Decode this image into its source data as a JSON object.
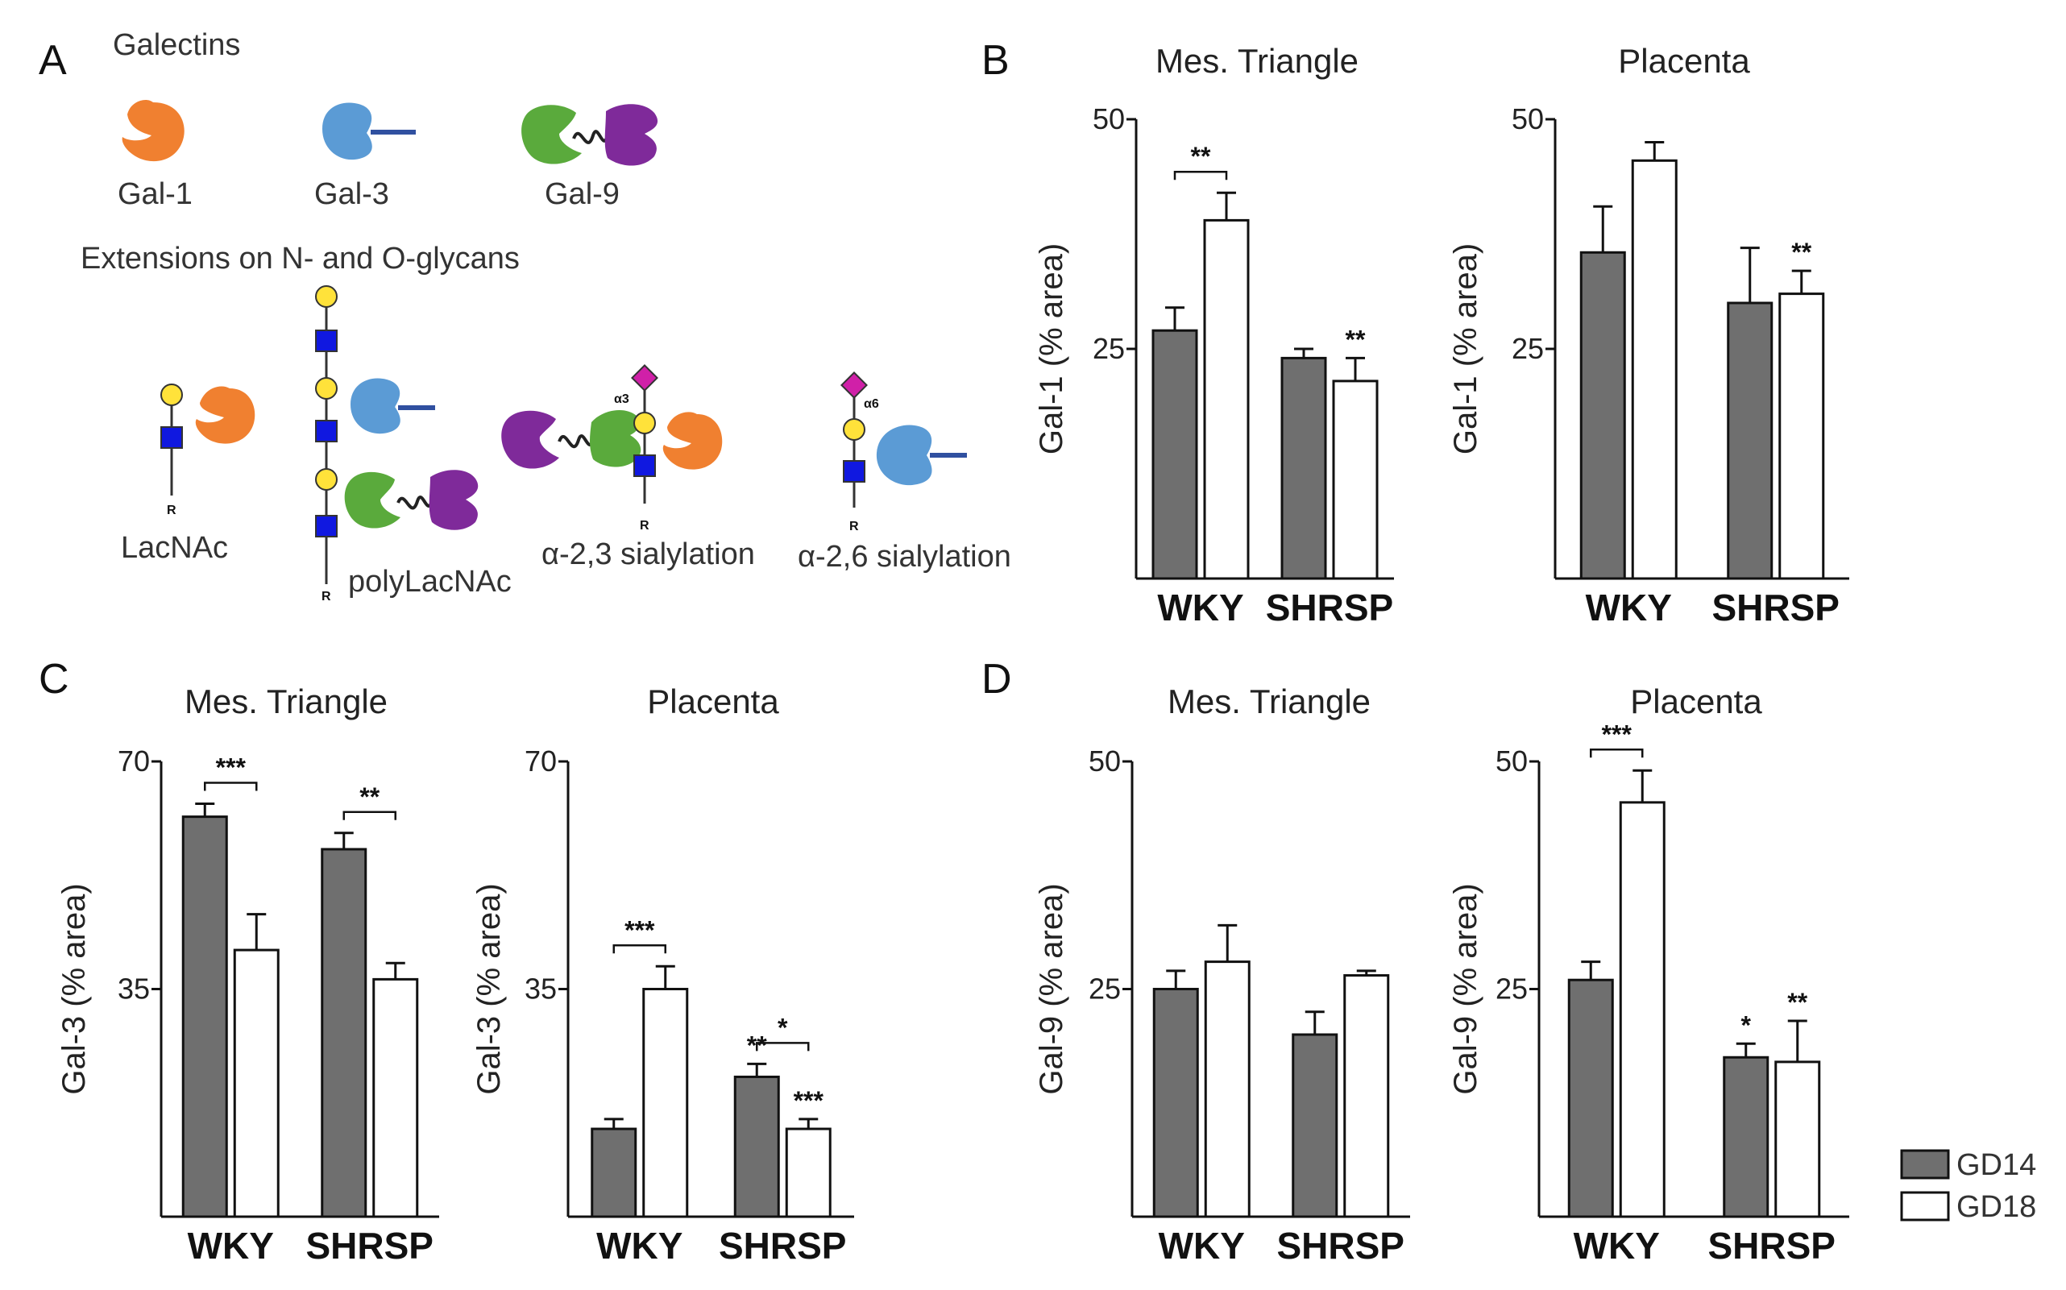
{
  "panels": {
    "a": "A",
    "b": "B",
    "c": "C",
    "d": "D"
  },
  "schematic": {
    "title": "Galectins",
    "gal1": "Gal-1",
    "gal3": "Gal-3",
    "gal9": "Gal-9",
    "extensions": "Extensions on N- and O-glycans",
    "lacnac": "LacNAc",
    "polylacnac": "polyLacNAc",
    "a23": "α-2,3 sialylation",
    "a26": "α-2,6 sialylation",
    "r": "R",
    "alpha3": "α3",
    "alpha6": "α6",
    "colors": {
      "gal1": "#f08030",
      "gal3": "#5b9bd5",
      "gal9a": "#5aaa3c",
      "gal9b": "#7f2a9a",
      "yellow": "#ffe23a",
      "blue": "#1018e0",
      "magenta": "#d020a8"
    }
  },
  "legend": {
    "gd14": "GD14",
    "gd18": "GD18",
    "gd14_color": "#6f6f6f",
    "gd18_color": "#ffffff"
  },
  "chart_data": [
    {
      "id": "B1",
      "type": "bar",
      "title": "Mes. Triangle",
      "ylabel": "Gal-1 (% area)",
      "ylim": [
        0,
        50
      ],
      "yticks": [
        25,
        50
      ],
      "yticklabels": [
        "25",
        "50"
      ],
      "categories": [
        "WKY",
        "SHRSP"
      ],
      "series": [
        {
          "name": "GD14",
          "values": [
            27,
            24
          ],
          "errors": [
            2.5,
            1
          ]
        },
        {
          "name": "GD18",
          "values": [
            39,
            21.5
          ],
          "errors": [
            3,
            2.5
          ]
        }
      ],
      "brackets": [
        {
          "group": 0,
          "label": "**"
        }
      ],
      "stars": [
        {
          "group": 1,
          "series": 1,
          "label": "**"
        }
      ]
    },
    {
      "id": "B2",
      "type": "bar",
      "title": "Placenta",
      "ylabel": "Gal-1 (% area)",
      "ylim": [
        0,
        50
      ],
      "yticks": [
        25,
        50
      ],
      "yticklabels": [
        "25",
        "50"
      ],
      "categories": [
        "WKY",
        "SHRSP"
      ],
      "series": [
        {
          "name": "GD14",
          "values": [
            35.5,
            30
          ],
          "errors": [
            5,
            6
          ]
        },
        {
          "name": "GD18",
          "values": [
            45.5,
            31
          ],
          "errors": [
            2,
            2.5
          ]
        }
      ],
      "brackets": [],
      "stars": [
        {
          "group": 1,
          "series": 1,
          "label": "**"
        }
      ]
    },
    {
      "id": "C1",
      "type": "bar",
      "title": "Mes. Triangle",
      "ylabel": "Gal-3 (% area)",
      "ylim": [
        0,
        70
      ],
      "yticks": [
        35,
        70
      ],
      "yticklabels": [
        "35",
        "70"
      ],
      "categories": [
        "WKY",
        "SHRSP"
      ],
      "series": [
        {
          "name": "GD14",
          "values": [
            61.5,
            56.5
          ],
          "errors": [
            2,
            2.5
          ]
        },
        {
          "name": "GD18",
          "values": [
            41,
            36.5
          ],
          "errors": [
            5.5,
            2.5
          ]
        }
      ],
      "brackets": [
        {
          "group": 0,
          "label": "***"
        },
        {
          "group": 1,
          "label": "**"
        }
      ],
      "stars": []
    },
    {
      "id": "C2",
      "type": "bar",
      "title": "Placenta",
      "ylabel": "Gal-3 (% area)",
      "ylim": [
        0,
        70
      ],
      "yticks": [
        35,
        70
      ],
      "yticklabels": [
        "35",
        "70"
      ],
      "categories": [
        "WKY",
        "SHRSP"
      ],
      "series": [
        {
          "name": "GD14",
          "values": [
            13.5,
            21.5
          ],
          "errors": [
            1.5,
            2
          ]
        },
        {
          "name": "GD18",
          "values": [
            35,
            13.5
          ],
          "errors": [
            3.5,
            1.5
          ]
        }
      ],
      "brackets": [
        {
          "group": 0,
          "label": "***"
        },
        {
          "group": 1,
          "label": "*"
        }
      ],
      "stars": [
        {
          "group": 1,
          "series": 0,
          "label": "**"
        },
        {
          "group": 1,
          "series": 1,
          "label": "***"
        }
      ]
    },
    {
      "id": "D1",
      "type": "bar",
      "title": "Mes. Triangle",
      "ylabel": "Gal-9 (% area)",
      "ylim": [
        0,
        50
      ],
      "yticks": [
        25,
        50
      ],
      "yticklabels": [
        "25",
        "50"
      ],
      "categories": [
        "WKY",
        "SHRSP"
      ],
      "series": [
        {
          "name": "GD14",
          "values": [
            25,
            20
          ],
          "errors": [
            2,
            2.5
          ]
        },
        {
          "name": "GD18",
          "values": [
            28,
            26.5
          ],
          "errors": [
            4,
            0.5
          ]
        }
      ],
      "brackets": [],
      "stars": []
    },
    {
      "id": "D2",
      "type": "bar",
      "title": "Placenta",
      "ylabel": "Gal-9 (% area)",
      "ylim": [
        0,
        50
      ],
      "yticks": [
        25,
        50
      ],
      "yticklabels": [
        "25",
        "50"
      ],
      "categories": [
        "WKY",
        "SHRSP"
      ],
      "series": [
        {
          "name": "GD14",
          "values": [
            26,
            17.5
          ],
          "errors": [
            2,
            1.5
          ]
        },
        {
          "name": "GD18",
          "values": [
            45.5,
            17
          ],
          "errors": [
            3.5,
            4.5
          ]
        }
      ],
      "brackets": [
        {
          "group": 0,
          "label": "***"
        }
      ],
      "stars": [
        {
          "group": 1,
          "series": 0,
          "label": "*"
        },
        {
          "group": 1,
          "series": 1,
          "label": "**"
        }
      ]
    }
  ]
}
